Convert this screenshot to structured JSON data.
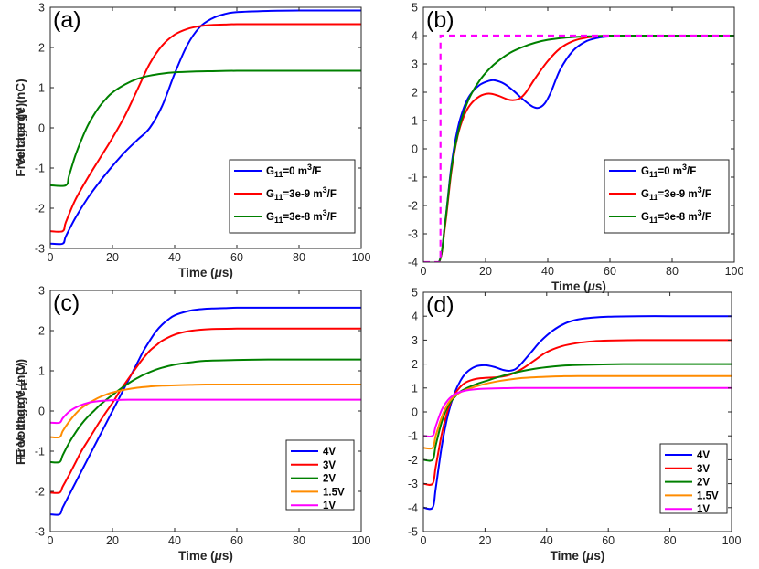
{
  "chart_data": [
    {
      "type": "line",
      "panel_label": "(a)",
      "xlabel": "Time (μs)",
      "ylabel": "Free charge (nC)",
      "xlim": [
        0,
        100
      ],
      "ylim": [
        -3,
        3
      ],
      "xticks": [
        0,
        20,
        40,
        60,
        80,
        100
      ],
      "yticks": [
        -3,
        -2,
        -1,
        0,
        1,
        2,
        3
      ],
      "grid": false,
      "legend_position": "lower-right",
      "series": [
        {
          "name": "G11=0 m3/F",
          "legend": {
            "main": "G",
            "sub": "11",
            "mid": "=0 m",
            "sup": "3",
            "tail": "/F"
          },
          "color": "#0000ff",
          "x": [
            0,
            4,
            5,
            8,
            12,
            16,
            20,
            24,
            28,
            32,
            36,
            40,
            44,
            48,
            52,
            56,
            60,
            70,
            80,
            90,
            100
          ],
          "y": [
            -2.88,
            -2.88,
            -2.7,
            -2.25,
            -1.75,
            -1.33,
            -0.95,
            -0.6,
            -0.3,
            0.0,
            0.55,
            1.35,
            2.05,
            2.5,
            2.72,
            2.83,
            2.88,
            2.91,
            2.92,
            2.92,
            2.92
          ]
        },
        {
          "name": "G11=3e-9 m3/F",
          "legend": {
            "main": "G",
            "sub": "11",
            "mid": "=3e-9 m",
            "sup": "3",
            "tail": "/F"
          },
          "color": "#ff0000",
          "x": [
            0,
            4,
            5,
            8,
            12,
            16,
            20,
            24,
            28,
            32,
            36,
            40,
            44,
            48,
            52,
            56,
            60,
            70,
            80,
            90,
            100
          ],
          "y": [
            -2.57,
            -2.57,
            -2.35,
            -1.8,
            -1.25,
            -0.75,
            -0.25,
            0.3,
            0.95,
            1.6,
            2.05,
            2.32,
            2.46,
            2.53,
            2.56,
            2.57,
            2.58,
            2.58,
            2.58,
            2.58,
            2.58
          ]
        },
        {
          "name": "G11=3e-8 m3/F",
          "legend": {
            "main": "G",
            "sub": "11",
            "mid": "=3e-8 m",
            "sup": "3",
            "tail": "/F"
          },
          "color": "#008000",
          "x": [
            0,
            5,
            6,
            8,
            10,
            12,
            14,
            16,
            18,
            20,
            24,
            28,
            32,
            36,
            40,
            46,
            52,
            60,
            70,
            80,
            90,
            100
          ],
          "y": [
            -1.43,
            -1.43,
            -1.2,
            -0.7,
            -0.3,
            0.05,
            0.32,
            0.55,
            0.73,
            0.88,
            1.08,
            1.22,
            1.3,
            1.35,
            1.38,
            1.4,
            1.41,
            1.42,
            1.42,
            1.42,
            1.42,
            1.42
          ]
        }
      ]
    },
    {
      "type": "line",
      "panel_label": "(b)",
      "xlabel": "Time (μs)",
      "ylabel": "Voltage (V)",
      "xlim": [
        0,
        100
      ],
      "ylim": [
        -4,
        5
      ],
      "xticks": [
        0,
        20,
        40,
        60,
        80,
        100
      ],
      "yticks": [
        -4,
        -3,
        -2,
        -1,
        0,
        1,
        2,
        3,
        4,
        5
      ],
      "grid": false,
      "legend_position": "lower-right",
      "series": [
        {
          "name": "G11=0 m3/F",
          "legend": {
            "main": "G",
            "sub": "11",
            "mid": "=0 m",
            "sup": "3",
            "tail": "/F"
          },
          "color": "#0000ff",
          "x": [
            0,
            5,
            7,
            9,
            11,
            13,
            15,
            18,
            21,
            23,
            26,
            29,
            32,
            35,
            37,
            39,
            41,
            44,
            48,
            52,
            56,
            60,
            65,
            70,
            80,
            90,
            100
          ],
          "y": [
            -4,
            -4,
            -2.6,
            -0.6,
            0.7,
            1.45,
            1.9,
            2.25,
            2.4,
            2.42,
            2.3,
            2.05,
            1.75,
            1.5,
            1.45,
            1.6,
            2.0,
            2.8,
            3.45,
            3.78,
            3.92,
            3.97,
            3.99,
            4.0,
            4.0,
            4.0,
            4.0
          ]
        },
        {
          "name": "G11=3e-9 m3/F",
          "legend": {
            "main": "G",
            "sub": "11",
            "mid": "=3e-9 m",
            "sup": "3",
            "tail": "/F"
          },
          "color": "#ff0000",
          "x": [
            0,
            5,
            7,
            9,
            11,
            13,
            15,
            18,
            21,
            24,
            27,
            29,
            31,
            33,
            36,
            40,
            44,
            48,
            52,
            56,
            60,
            65,
            70,
            80,
            90,
            100
          ],
          "y": [
            -4,
            -4,
            -2.7,
            -0.8,
            0.45,
            1.15,
            1.55,
            1.85,
            1.95,
            1.88,
            1.75,
            1.72,
            1.78,
            2.0,
            2.5,
            3.1,
            3.55,
            3.8,
            3.92,
            3.97,
            3.99,
            4.0,
            4.0,
            4.0,
            4.0,
            4.0
          ]
        },
        {
          "name": "G11=3e-8 m3/F",
          "legend": {
            "main": "G",
            "sub": "11",
            "mid": "=3e-8 m",
            "sup": "3",
            "tail": "/F"
          },
          "color": "#008000",
          "x": [
            0,
            5,
            7,
            9,
            11,
            13,
            15,
            18,
            21,
            24,
            28,
            32,
            36,
            40,
            45,
            50,
            55,
            60,
            70,
            80,
            90,
            100
          ],
          "y": [
            -4,
            -4,
            -2.6,
            -0.7,
            0.5,
            1.3,
            1.85,
            2.4,
            2.8,
            3.1,
            3.4,
            3.6,
            3.75,
            3.85,
            3.92,
            3.96,
            3.98,
            4.0,
            4.0,
            4.0,
            4.0,
            4.0
          ]
        },
        {
          "name": "",
          "style": "dashed",
          "color": "#ff00ff",
          "x": [
            0,
            5.5,
            5.5,
            100
          ],
          "y": [
            -4,
            -4,
            4,
            4
          ]
        }
      ]
    },
    {
      "type": "line",
      "panel_label": "(c)",
      "xlabel": "Time (μs)",
      "ylabel": "Free charge (nC)",
      "xlim": [
        0,
        100
      ],
      "ylim": [
        -3,
        3
      ],
      "xticks": [
        0,
        20,
        40,
        60,
        80,
        100
      ],
      "yticks": [
        -3,
        -2,
        -1,
        0,
        1,
        2,
        3
      ],
      "grid": false,
      "legend_position": "lower-right",
      "series": [
        {
          "name": "4V",
          "color": "#0000ff",
          "x": [
            0,
            3,
            4,
            6,
            8,
            10,
            12,
            14,
            16,
            18,
            20,
            22,
            24,
            26,
            28,
            30,
            32,
            34,
            36,
            38,
            40,
            44,
            48,
            52,
            56,
            60,
            70,
            80,
            90,
            100
          ],
          "y": [
            -2.57,
            -2.57,
            -2.4,
            -2.1,
            -1.8,
            -1.5,
            -1.2,
            -0.9,
            -0.6,
            -0.3,
            0.0,
            0.3,
            0.6,
            0.9,
            1.2,
            1.5,
            1.75,
            1.98,
            2.15,
            2.28,
            2.38,
            2.48,
            2.53,
            2.55,
            2.56,
            2.57,
            2.57,
            2.57,
            2.57,
            2.57
          ]
        },
        {
          "name": "3V",
          "color": "#ff0000",
          "x": [
            0,
            3,
            4,
            6,
            8,
            10,
            12,
            14,
            16,
            18,
            20,
            22,
            24,
            26,
            28,
            30,
            32,
            34,
            36,
            40,
            44,
            48,
            52,
            60,
            70,
            80,
            90,
            100
          ],
          "y": [
            -2.03,
            -2.03,
            -1.88,
            -1.6,
            -1.3,
            -1.0,
            -0.75,
            -0.5,
            -0.25,
            -0.02,
            0.2,
            0.45,
            0.68,
            0.9,
            1.12,
            1.32,
            1.5,
            1.63,
            1.75,
            1.9,
            1.98,
            2.02,
            2.04,
            2.05,
            2.05,
            2.05,
            2.05,
            2.05
          ]
        },
        {
          "name": "2V",
          "color": "#008000",
          "x": [
            0,
            3,
            4,
            6,
            8,
            10,
            12,
            14,
            16,
            18,
            20,
            22,
            24,
            26,
            28,
            30,
            34,
            38,
            42,
            46,
            50,
            60,
            70,
            80,
            90,
            100
          ],
          "y": [
            -1.27,
            -1.27,
            -1.1,
            -0.8,
            -0.55,
            -0.33,
            -0.15,
            0.0,
            0.15,
            0.28,
            0.4,
            0.52,
            0.63,
            0.73,
            0.82,
            0.9,
            1.03,
            1.12,
            1.18,
            1.22,
            1.25,
            1.27,
            1.28,
            1.28,
            1.28,
            1.28
          ]
        },
        {
          "name": "1.5V",
          "color": "#ff8c00",
          "x": [
            0,
            3,
            4,
            6,
            8,
            10,
            12,
            14,
            16,
            18,
            20,
            24,
            28,
            32,
            36,
            40,
            45,
            50,
            60,
            70,
            80,
            90,
            100
          ],
          "y": [
            -0.65,
            -0.65,
            -0.5,
            -0.27,
            -0.08,
            0.07,
            0.18,
            0.27,
            0.35,
            0.41,
            0.46,
            0.53,
            0.58,
            0.61,
            0.63,
            0.64,
            0.65,
            0.66,
            0.66,
            0.66,
            0.66,
            0.66,
            0.66
          ]
        },
        {
          "name": "1V",
          "color": "#ff00ff",
          "x": [
            0,
            3,
            4,
            6,
            8,
            10,
            12,
            14,
            16,
            20,
            25,
            30,
            40,
            50,
            60,
            70,
            80,
            90,
            100
          ],
          "y": [
            -0.29,
            -0.29,
            -0.18,
            -0.02,
            0.08,
            0.15,
            0.2,
            0.23,
            0.25,
            0.27,
            0.28,
            0.28,
            0.28,
            0.28,
            0.28,
            0.28,
            0.28,
            0.28,
            0.28
          ]
        }
      ]
    },
    {
      "type": "line",
      "panel_label": "(d)",
      "xlabel": "Time (μs)",
      "ylabel": "FE Voltage V",
      "ylabel_sub": "FE",
      "ylabel_tail": " (V)",
      "xlim": [
        0,
        100
      ],
      "ylim": [
        -5,
        5
      ],
      "xticks": [
        0,
        20,
        40,
        60,
        80,
        100
      ],
      "yticks": [
        -5,
        -4,
        -3,
        -2,
        -1,
        0,
        1,
        2,
        3,
        4,
        5
      ],
      "grid": false,
      "legend_position": "lower-right",
      "series": [
        {
          "name": "4V",
          "color": "#0000ff",
          "x": [
            0,
            3,
            4,
            6,
            8,
            10,
            12,
            14,
            17,
            20,
            23,
            26,
            28,
            30,
            32,
            35,
            38,
            42,
            46,
            50,
            55,
            60,
            70,
            80,
            90,
            100
          ],
          "y": [
            -4,
            -4,
            -3.2,
            -1.4,
            -0.1,
            0.75,
            1.3,
            1.65,
            1.9,
            1.95,
            1.88,
            1.75,
            1.72,
            1.8,
            2.05,
            2.5,
            2.95,
            3.4,
            3.7,
            3.86,
            3.94,
            3.98,
            4.0,
            4.0,
            4.0,
            4.0
          ]
        },
        {
          "name": "3V",
          "color": "#ff0000",
          "x": [
            0,
            3,
            4,
            6,
            8,
            10,
            12,
            14,
            17,
            20,
            24,
            28,
            32,
            36,
            40,
            45,
            50,
            55,
            60,
            70,
            80,
            90,
            100
          ],
          "y": [
            -3,
            -3,
            -2.3,
            -0.9,
            0.1,
            0.7,
            1.05,
            1.25,
            1.38,
            1.42,
            1.45,
            1.55,
            1.8,
            2.15,
            2.5,
            2.75,
            2.88,
            2.95,
            2.98,
            3.0,
            3.0,
            3.0,
            3.0
          ]
        },
        {
          "name": "2V",
          "color": "#008000",
          "x": [
            0,
            3,
            4,
            6,
            8,
            10,
            12,
            15,
            18,
            21,
            25,
            30,
            35,
            40,
            45,
            50,
            60,
            70,
            80,
            90,
            100
          ],
          "y": [
            -2,
            -2,
            -1.4,
            -0.4,
            0.25,
            0.6,
            0.85,
            1.05,
            1.2,
            1.32,
            1.48,
            1.65,
            1.78,
            1.87,
            1.93,
            1.96,
            1.99,
            2.0,
            2.0,
            2.0,
            2.0
          ]
        },
        {
          "name": "1.5V",
          "color": "#ff8c00",
          "x": [
            0,
            3,
            4,
            6,
            8,
            10,
            12,
            15,
            18,
            21,
            25,
            30,
            35,
            40,
            45,
            50,
            60,
            70,
            80,
            90,
            100
          ],
          "y": [
            -1.5,
            -1.5,
            -1.0,
            -0.2,
            0.35,
            0.65,
            0.82,
            0.98,
            1.1,
            1.2,
            1.3,
            1.39,
            1.44,
            1.47,
            1.49,
            1.5,
            1.5,
            1.5,
            1.5,
            1.5,
            1.5
          ]
        },
        {
          "name": "1V",
          "color": "#ff00ff",
          "x": [
            0,
            3,
            4,
            6,
            8,
            10,
            12,
            15,
            18,
            22,
            26,
            30,
            40,
            50,
            60,
            70,
            80,
            90,
            100
          ],
          "y": [
            -1,
            -1,
            -0.6,
            0.1,
            0.5,
            0.72,
            0.84,
            0.92,
            0.96,
            0.98,
            0.99,
            1.0,
            1.0,
            1.0,
            1.0,
            1.0,
            1.0,
            1.0,
            1.0
          ]
        }
      ]
    }
  ]
}
